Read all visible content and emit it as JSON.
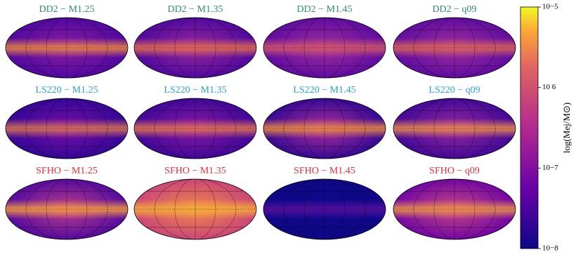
{
  "figure": {
    "panels": [
      {
        "title": "DD2 − M1.25",
        "color": "#2f8a78"
      },
      {
        "title": "DD2 − M1.35",
        "color": "#2f8a78"
      },
      {
        "title": "DD2 − M1.45",
        "color": "#2f8a78"
      },
      {
        "title": "DD2 − q09",
        "color": "#2f8a78"
      },
      {
        "title": "LS220 − M1.25",
        "color": "#2a9fd8"
      },
      {
        "title": "LS220 − M1.35",
        "color": "#2a9fd8"
      },
      {
        "title": "LS220 − M1.45",
        "color": "#2a9fd8"
      },
      {
        "title": "LS220 − q09",
        "color": "#2a9fd8"
      },
      {
        "title": "SFHO − M1.25",
        "color": "#e0303c"
      },
      {
        "title": "SFHO − M1.35",
        "color": "#e0303c"
      },
      {
        "title": "SFHO − M1.45",
        "color": "#e0303c"
      },
      {
        "title": "SFHO − q09",
        "color": "#e0303c"
      }
    ],
    "colorbar": {
      "label": "log(Mej/M⊙)",
      "log": true,
      "lim": [
        1e-08,
        1e-05
      ],
      "ticks": [
        {
          "value": 1e-05,
          "label": "10−5"
        },
        {
          "value": 1e-06,
          "label": "10 6"
        },
        {
          "value": 1e-07,
          "label": "10−7"
        },
        {
          "value": 1e-08,
          "label": "10−8"
        }
      ]
    }
  }
}
